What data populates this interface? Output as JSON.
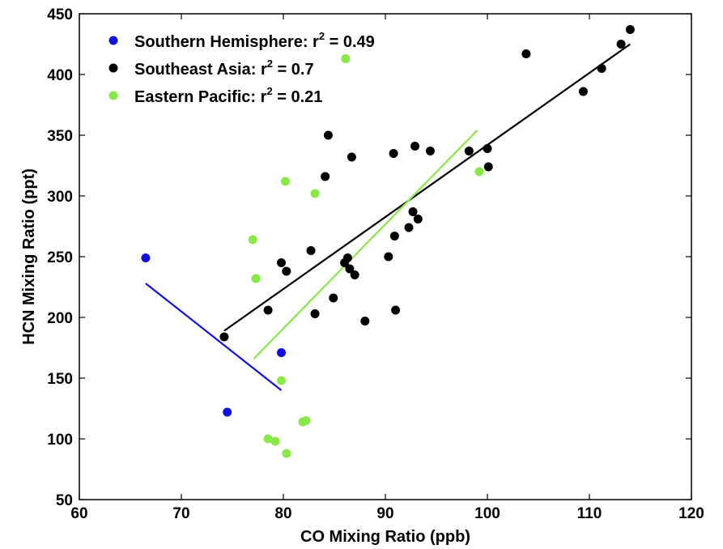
{
  "chart_data": {
    "type": "scatter",
    "xlabel": "CO Mixing Ratio (ppb)",
    "ylabel": "HCN Mixing Ratio (ppt)",
    "xlim": [
      60,
      120
    ],
    "ylim": [
      50,
      450
    ],
    "xticks": [
      "60",
      "70",
      "80",
      "90",
      "100",
      "110",
      "120"
    ],
    "yticks": [
      "50",
      "100",
      "150",
      "200",
      "250",
      "300",
      "350",
      "400",
      "450"
    ],
    "grid": false,
    "legend_position": "top-left",
    "series": [
      {
        "name": "Southern Hemisphere",
        "r2_label": "r",
        "r2_exp": "2",
        "r2_value": " = 0.49",
        "color": "#1010e0",
        "points": [
          [
            66.5,
            249
          ],
          [
            74.5,
            122
          ],
          [
            79.8,
            171
          ]
        ],
        "fit": [
          [
            66.5,
            228
          ],
          [
            79.8,
            140
          ]
        ]
      },
      {
        "name": "Southeast Asia",
        "r2_label": "r",
        "r2_exp": "2",
        "r2_value": " = 0.7",
        "color": "#000000",
        "points": [
          [
            74.2,
            184
          ],
          [
            78.5,
            206
          ],
          [
            79.8,
            245
          ],
          [
            80.3,
            238
          ],
          [
            82.7,
            255
          ],
          [
            83.1,
            203
          ],
          [
            84.1,
            316
          ],
          [
            84.4,
            350
          ],
          [
            84.9,
            216
          ],
          [
            86.0,
            245
          ],
          [
            86.3,
            249
          ],
          [
            86.5,
            240
          ],
          [
            86.7,
            332
          ],
          [
            87.0,
            235
          ],
          [
            88.0,
            197
          ],
          [
            90.3,
            250
          ],
          [
            90.8,
            335
          ],
          [
            90.9,
            267
          ],
          [
            91.0,
            206
          ],
          [
            92.3,
            274
          ],
          [
            92.7,
            287
          ],
          [
            92.9,
            341
          ],
          [
            93.2,
            281
          ],
          [
            94.4,
            337
          ],
          [
            98.2,
            337
          ],
          [
            100.0,
            339
          ],
          [
            100.1,
            324
          ],
          [
            103.8,
            417
          ],
          [
            109.4,
            386
          ],
          [
            111.2,
            405
          ],
          [
            113.1,
            425
          ],
          [
            114.0,
            437
          ]
        ],
        "fit": [
          [
            74.2,
            189
          ],
          [
            114.0,
            425
          ]
        ]
      },
      {
        "name": "Eastern Pacific",
        "r2_label": "r",
        "r2_exp": "2",
        "r2_value": " = 0.21",
        "color": "#88e848",
        "points": [
          [
            77.0,
            264
          ],
          [
            77.3,
            232
          ],
          [
            78.5,
            100
          ],
          [
            79.2,
            98
          ],
          [
            79.8,
            148
          ],
          [
            80.2,
            312
          ],
          [
            80.3,
            88
          ],
          [
            81.9,
            114
          ],
          [
            82.2,
            115
          ],
          [
            83.1,
            302
          ],
          [
            86.1,
            413
          ],
          [
            99.2,
            320
          ]
        ],
        "fit": [
          [
            77.1,
            166
          ],
          [
            99.0,
            354
          ]
        ]
      }
    ]
  }
}
